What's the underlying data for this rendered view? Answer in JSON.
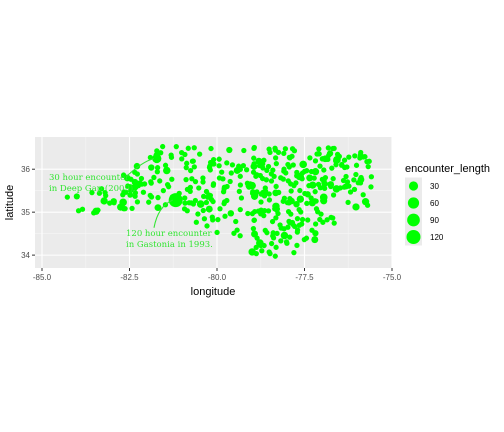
{
  "chart_data": {
    "type": "scatter",
    "title": "",
    "xlabel": "longitude",
    "ylabel": "latitude",
    "xlim": [
      -85.2,
      -75.0
    ],
    "ylim": [
      33.7,
      36.75
    ],
    "x_ticks": [
      -85.0,
      -82.5,
      -80.0,
      -77.5,
      -75.0
    ],
    "x_tick_labels": [
      "-85.0",
      "-82.5",
      "-80.0",
      "-77.5",
      "-75.0"
    ],
    "y_ticks": [
      34,
      35,
      36
    ],
    "y_tick_labels": [
      "34",
      "35",
      "36"
    ],
    "grid": true,
    "panel_background": "#ebebeb",
    "point_color": "#00ff00",
    "annotation_color": "#33e533",
    "size_legend": {
      "title": "encounter_length",
      "position": "right",
      "values": [
        30,
        60,
        90,
        120
      ],
      "labels": [
        "30",
        "60",
        "90",
        "120"
      ]
    },
    "annotations": [
      {
        "lines": [
          "30 hour encounter",
          "in Deep Gap (2009)."
        ],
        "x": -84.8,
        "y": 35.75,
        "arrow_to": [
          -81.72,
          36.25
        ]
      },
      {
        "lines": [
          "120 hour encounter",
          "in Gastonia in 1993."
        ],
        "x": -82.6,
        "y": 34.45,
        "arrow_to": [
          -81.18,
          35.28
        ]
      }
    ],
    "highlight_points": [
      {
        "lon": -81.72,
        "lat": 36.25,
        "encounter_length": 30
      },
      {
        "lon": -81.18,
        "lat": 35.28,
        "encounter_length": 120
      }
    ]
  }
}
